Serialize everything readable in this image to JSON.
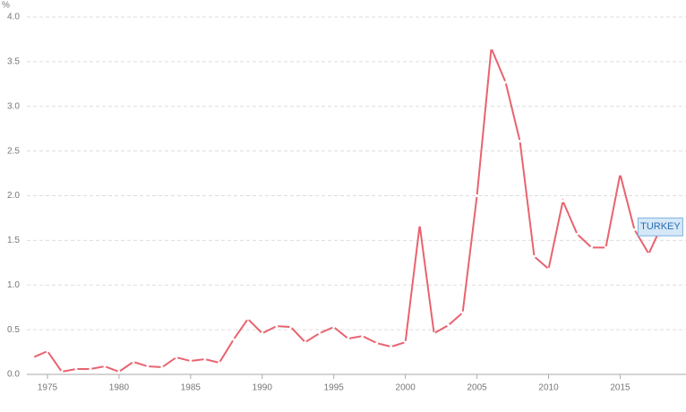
{
  "chart_data": {
    "type": "line",
    "y_label": "%",
    "x": [
      1974,
      1975,
      1976,
      1977,
      1978,
      1979,
      1980,
      1981,
      1982,
      1983,
      1984,
      1985,
      1986,
      1987,
      1988,
      1989,
      1990,
      1991,
      1992,
      1993,
      1994,
      1995,
      1996,
      1997,
      1998,
      1999,
      2000,
      2001,
      2002,
      2003,
      2004,
      2005,
      2006,
      2007,
      2008,
      2009,
      2010,
      2011,
      2012,
      2013,
      2014,
      2015,
      2016,
      2017,
      2018
    ],
    "series": [
      {
        "name": "TURKEY",
        "color": "#e8636f",
        "values": [
          0.19,
          0.26,
          0.03,
          0.06,
          0.06,
          0.09,
          0.03,
          0.14,
          0.09,
          0.08,
          0.19,
          0.15,
          0.17,
          0.13,
          0.39,
          0.62,
          0.46,
          0.54,
          0.53,
          0.36,
          0.46,
          0.53,
          0.4,
          0.43,
          0.35,
          0.31,
          0.36,
          1.67,
          0.46,
          0.55,
          0.69,
          2.0,
          3.65,
          3.27,
          2.61,
          1.32,
          1.18,
          1.94,
          1.57,
          1.42,
          1.42,
          2.24,
          1.62,
          1.35,
          1.7
        ]
      }
    ],
    "xlim": [
      1974,
      2019.6
    ],
    "xticks": [
      1975,
      1980,
      1985,
      1990,
      1995,
      2000,
      2005,
      2010,
      2015
    ],
    "ylim": [
      0,
      4
    ],
    "yticks": [
      {
        "value": 0,
        "label": "0.0"
      },
      {
        "value": 0.5,
        "label": "0.5"
      },
      {
        "value": 1,
        "label": "1.0"
      },
      {
        "value": 1.5,
        "label": "1.5"
      },
      {
        "value": 2,
        "label": "2.0"
      },
      {
        "value": 2.5,
        "label": "2.5"
      },
      {
        "value": 3,
        "label": "3.0"
      },
      {
        "value": 3.5,
        "label": "3.5"
      },
      {
        "value": 4,
        "label": "4.0"
      }
    ],
    "grid": true
  }
}
